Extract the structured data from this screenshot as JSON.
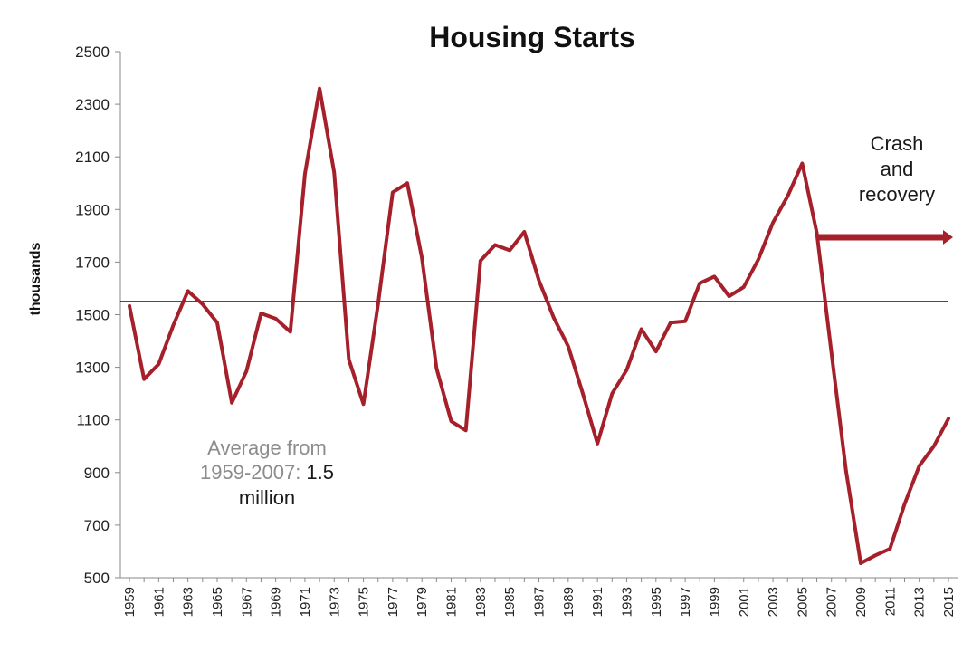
{
  "chart_data": {
    "type": "line",
    "title": "Housing Starts",
    "ylabel": "thousands",
    "xlabel": "",
    "ylim": [
      500,
      2500
    ],
    "yticks": [
      500,
      700,
      900,
      1100,
      1300,
      1500,
      1700,
      1900,
      2100,
      2300,
      2500
    ],
    "xtick_labels": [
      "1959",
      "1961",
      "1963",
      "1965",
      "1967",
      "1969",
      "1971",
      "1973",
      "1975",
      "1977",
      "1979",
      "1981",
      "1983",
      "1985",
      "1987",
      "1989",
      "1991",
      "1993",
      "1995",
      "1997",
      "1999",
      "2001",
      "2003",
      "2005",
      "2007",
      "2009",
      "2011",
      "2013",
      "2015"
    ],
    "x": [
      1959,
      1960,
      1961,
      1962,
      1963,
      1964,
      1965,
      1966,
      1967,
      1968,
      1969,
      1970,
      1971,
      1972,
      1973,
      1974,
      1975,
      1976,
      1977,
      1978,
      1979,
      1980,
      1981,
      1982,
      1983,
      1984,
      1985,
      1986,
      1987,
      1988,
      1989,
      1990,
      1991,
      1992,
      1993,
      1994,
      1995,
      1996,
      1997,
      1998,
      1999,
      2000,
      2001,
      2002,
      2003,
      2004,
      2005,
      2006,
      2007,
      2008,
      2009,
      2010,
      2011,
      2012,
      2013,
      2014,
      2015
    ],
    "series": [
      {
        "color": "#a5202a",
        "values": [
          1533,
          1255,
          1312,
          1460,
          1590,
          1540,
          1470,
          1165,
          1285,
          1505,
          1485,
          1435,
          2035,
          2360,
          2040,
          1330,
          1160,
          1540,
          1965,
          2000,
          1715,
          1295,
          1095,
          1060,
          1705,
          1765,
          1745,
          1815,
          1630,
          1490,
          1380,
          1200,
          1010,
          1200,
          1290,
          1445,
          1360,
          1470,
          1475,
          1620,
          1645,
          1570,
          1605,
          1710,
          1850,
          1950,
          2075,
          1810,
          1355,
          905,
          555,
          585,
          610,
          780,
          925,
          1000,
          1105
        ]
      }
    ],
    "reference_line": {
      "value": 1550,
      "color": "#111111"
    },
    "annotations": {
      "average_prefix": "Average from",
      "average_line2_gray": "1959-2007:",
      "average_value": "1.5",
      "average_unit": "million",
      "crash_line1": "Crash",
      "crash_line2": "and",
      "crash_line3": "recovery",
      "arrow_color": "#a5202a"
    },
    "grid": false,
    "legend": "none"
  }
}
